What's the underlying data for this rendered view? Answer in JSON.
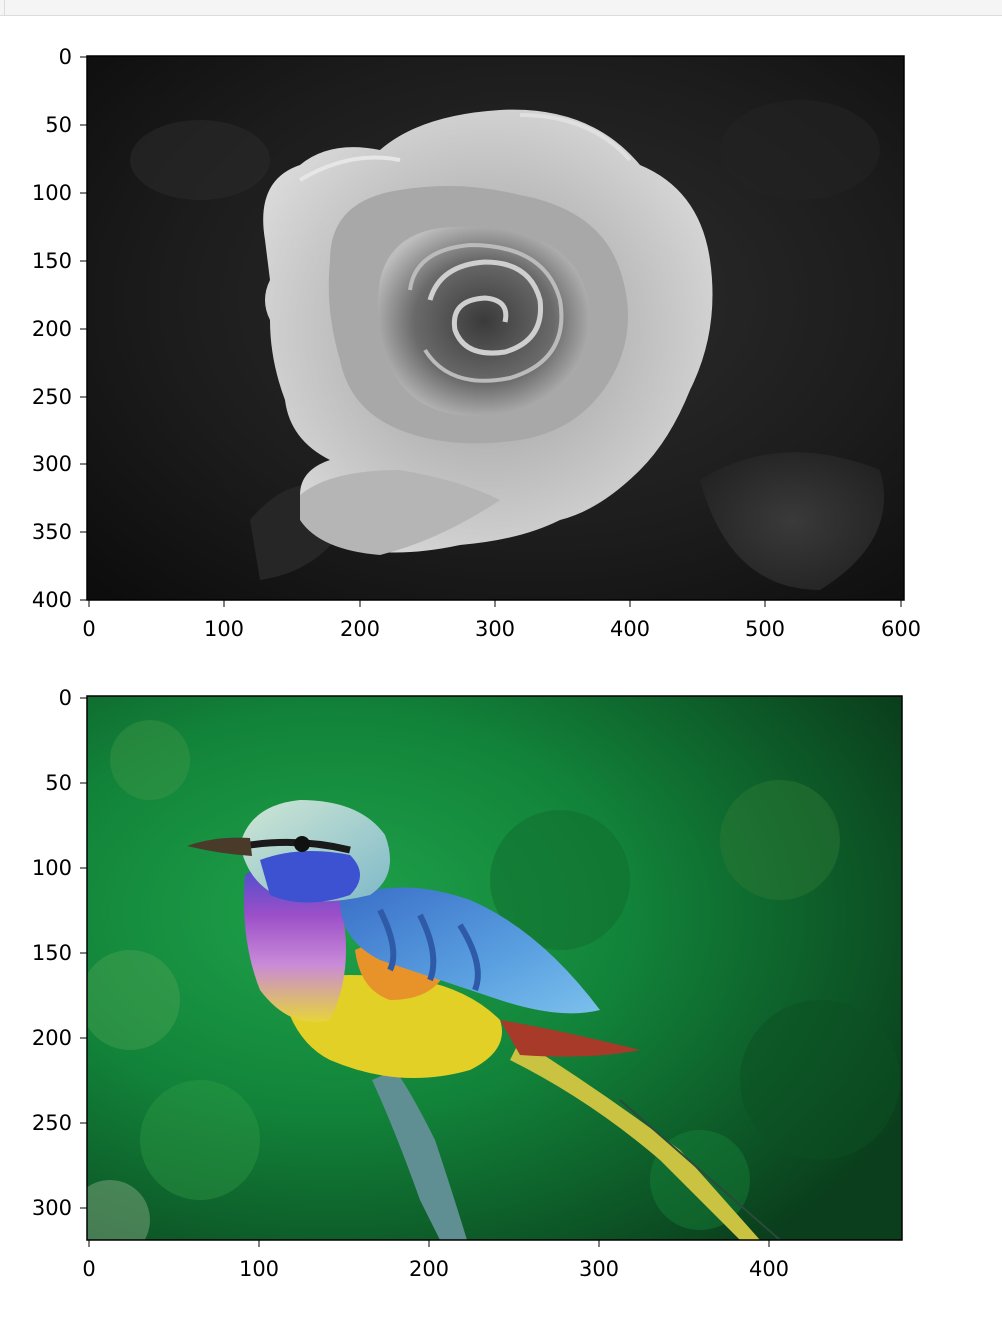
{
  "notebook": {
    "output_area": "cell-output"
  },
  "colors": {
    "axis": "#000000",
    "background": "#ffffff",
    "top_bar": "#f5f5f5"
  },
  "figures": [
    {
      "name": "rose-image-plot",
      "image_description": "grayscale rose",
      "y_ticks": [
        "0",
        "50",
        "100",
        "150",
        "200",
        "250",
        "300",
        "350",
        "400"
      ],
      "x_ticks": [
        "0",
        "100",
        "200",
        "300",
        "400",
        "500",
        "600"
      ],
      "xlim": [
        0,
        600
      ],
      "ylim": [
        400,
        0
      ]
    },
    {
      "name": "bird-image-plot",
      "image_description": "colorful lilac-breasted roller bird on a branch with green background",
      "y_ticks": [
        "0",
        "50",
        "100",
        "150",
        "200",
        "250",
        "300"
      ],
      "x_ticks": [
        "0",
        "100",
        "200",
        "300",
        "400"
      ],
      "xlim": [
        0,
        480
      ],
      "ylim": [
        320,
        0
      ]
    }
  ]
}
